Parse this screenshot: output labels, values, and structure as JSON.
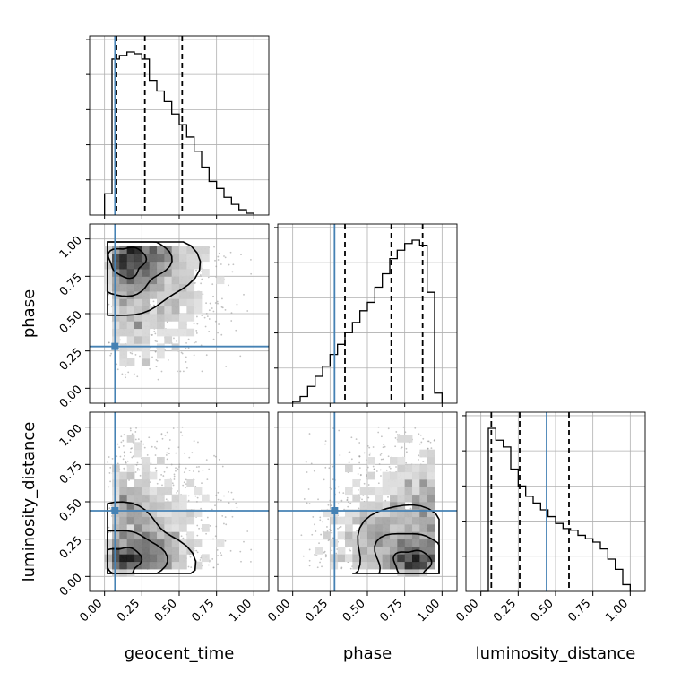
{
  "chart_data": {
    "type": "corner",
    "parameters": [
      "geocent_time",
      "phase",
      "luminosity_distance"
    ],
    "axis_range": [
      -0.1,
      1.1
    ],
    "tick_values": [
      0.0,
      0.25,
      0.5,
      0.75,
      1.0
    ],
    "tick_labels": [
      "0.00",
      "0.25",
      "0.50",
      "0.75",
      "1.00"
    ],
    "grid": true,
    "colors": {
      "truth": "#4682b4",
      "hist": "#000000",
      "quantile": "#000000",
      "points": "#999999"
    },
    "truths": {
      "geocent_time": 0.07,
      "phase": 0.28,
      "luminosity_distance": 0.44
    },
    "quantiles": {
      "geocent_time": [
        0.08,
        0.27,
        0.52
      ],
      "phase": [
        0.35,
        0.66,
        0.87
      ],
      "luminosity_distance": [
        0.07,
        0.26,
        0.59
      ]
    },
    "histograms": {
      "geocent_time": {
        "bin_edges": [
          0.0,
          0.05,
          0.1,
          0.15,
          0.2,
          0.25,
          0.3,
          0.35,
          0.4,
          0.45,
          0.5,
          0.55,
          0.6,
          0.65,
          0.7,
          0.75,
          0.8,
          0.85,
          0.9,
          0.95,
          1.0
        ],
        "counts": [
          0.12,
          0.88,
          0.9,
          0.92,
          0.91,
          0.88,
          0.76,
          0.7,
          0.64,
          0.57,
          0.51,
          0.44,
          0.36,
          0.27,
          0.19,
          0.15,
          0.1,
          0.06,
          0.03,
          0.01
        ]
      },
      "phase": {
        "bin_edges": [
          0.0,
          0.05,
          0.1,
          0.15,
          0.2,
          0.25,
          0.3,
          0.35,
          0.4,
          0.45,
          0.5,
          0.55,
          0.6,
          0.65,
          0.7,
          0.75,
          0.8,
          0.85,
          0.9,
          0.95,
          1.0
        ],
        "counts": [
          0.01,
          0.04,
          0.1,
          0.16,
          0.22,
          0.29,
          0.35,
          0.42,
          0.48,
          0.55,
          0.6,
          0.69,
          0.77,
          0.86,
          0.91,
          0.95,
          0.97,
          0.94,
          0.66,
          0.06
        ]
      },
      "luminosity_distance": {
        "bin_edges": [
          0.0,
          0.05,
          0.1,
          0.15,
          0.2,
          0.25,
          0.3,
          0.35,
          0.4,
          0.45,
          0.5,
          0.55,
          0.6,
          0.65,
          0.7,
          0.75,
          0.8,
          0.85,
          0.9,
          0.95,
          1.0
        ],
        "counts": [
          0.0,
          0.96,
          0.89,
          0.85,
          0.72,
          0.62,
          0.56,
          0.52,
          0.48,
          0.44,
          0.4,
          0.37,
          0.36,
          0.33,
          0.31,
          0.29,
          0.25,
          0.19,
          0.13,
          0.04
        ]
      }
    },
    "density_peaks": {
      "phase_vs_geocent_time": [
        [
          0.15,
          0.85,
          1.0
        ],
        [
          0.35,
          0.85,
          0.55
        ],
        [
          0.55,
          0.6,
          0.3
        ]
      ],
      "luminosity_distance_vs_geocent_time": [
        [
          0.12,
          0.1,
          1.0
        ],
        [
          0.35,
          0.15,
          0.45
        ],
        [
          0.2,
          0.5,
          0.25
        ]
      ],
      "luminosity_distance_vs_phase": [
        [
          0.8,
          0.08,
          1.0
        ],
        [
          0.55,
          0.35,
          0.4
        ],
        [
          0.85,
          0.6,
          0.25
        ]
      ]
    },
    "contour_levels": [
      "inner",
      "middle",
      "outer"
    ]
  }
}
